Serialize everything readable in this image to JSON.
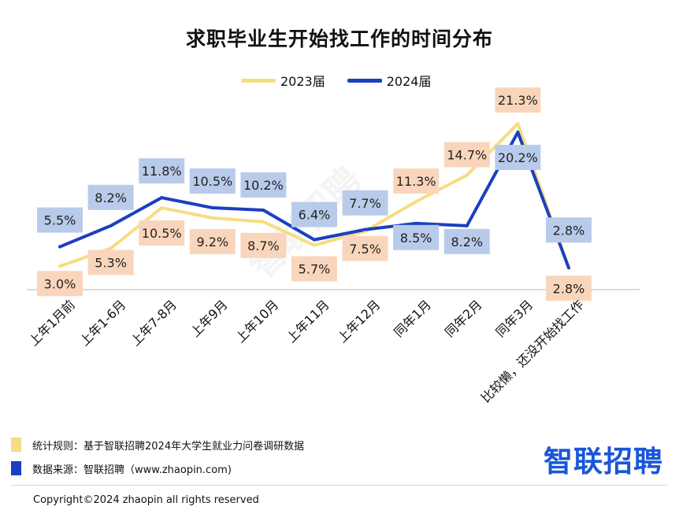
{
  "title": "求职毕业生开始找工作的时间分布",
  "legend": [
    {
      "name": "2023届",
      "color": "#f7dc84"
    },
    {
      "name": "2024届",
      "color": "#1a3fc0"
    }
  ],
  "watermark": "智联招聘",
  "notes": [
    {
      "text": "统计规则：基于智联招聘2024年大学生就业力问卷调研数据",
      "color": "#f7dc84"
    },
    {
      "text": "数据来源：智联招聘（www.zhaopin.com)",
      "color": "#1a3fc0"
    }
  ],
  "logo": "智联招聘",
  "copyright": "Copyright©2024 zhaopin all rights reserved",
  "chart_data": {
    "type": "line",
    "title": "求职毕业生开始找工作的时间分布",
    "categories": [
      "上年1月前",
      "上年1-6月",
      "上年7-8月",
      "上年9月",
      "上年10月",
      "上年11月",
      "上年12月",
      "同年1月",
      "同年2月",
      "同年3月",
      "比较懒，还没开始找工作"
    ],
    "series": [
      {
        "name": "2023届",
        "color": "#f7dc84",
        "label_bg": "#f9d6bb",
        "values": [
          3.0,
          5.3,
          10.5,
          9.2,
          8.7,
          5.7,
          7.5,
          11.3,
          14.7,
          21.3,
          2.8
        ],
        "labels": [
          "3.0%",
          "5.3%",
          "10.5%",
          "9.2%",
          "8.7%",
          "5.7%",
          "7.5%",
          "11.3%",
          "14.7%",
          "21.3%",
          "2.8%"
        ]
      },
      {
        "name": "2024届",
        "color": "#1a3fc0",
        "label_bg": "#b9cbea",
        "values": [
          5.5,
          8.2,
          11.8,
          10.5,
          10.2,
          6.4,
          7.7,
          8.5,
          8.2,
          20.2,
          2.8
        ],
        "labels": [
          "5.5%",
          "8.2%",
          "11.8%",
          "10.5%",
          "10.2%",
          "6.4%",
          "7.7%",
          "8.5%",
          "8.2%",
          "20.2%",
          "2.8%"
        ]
      }
    ],
    "ylim": [
      0,
      25
    ],
    "grid": false,
    "legend_position": "top-center"
  }
}
